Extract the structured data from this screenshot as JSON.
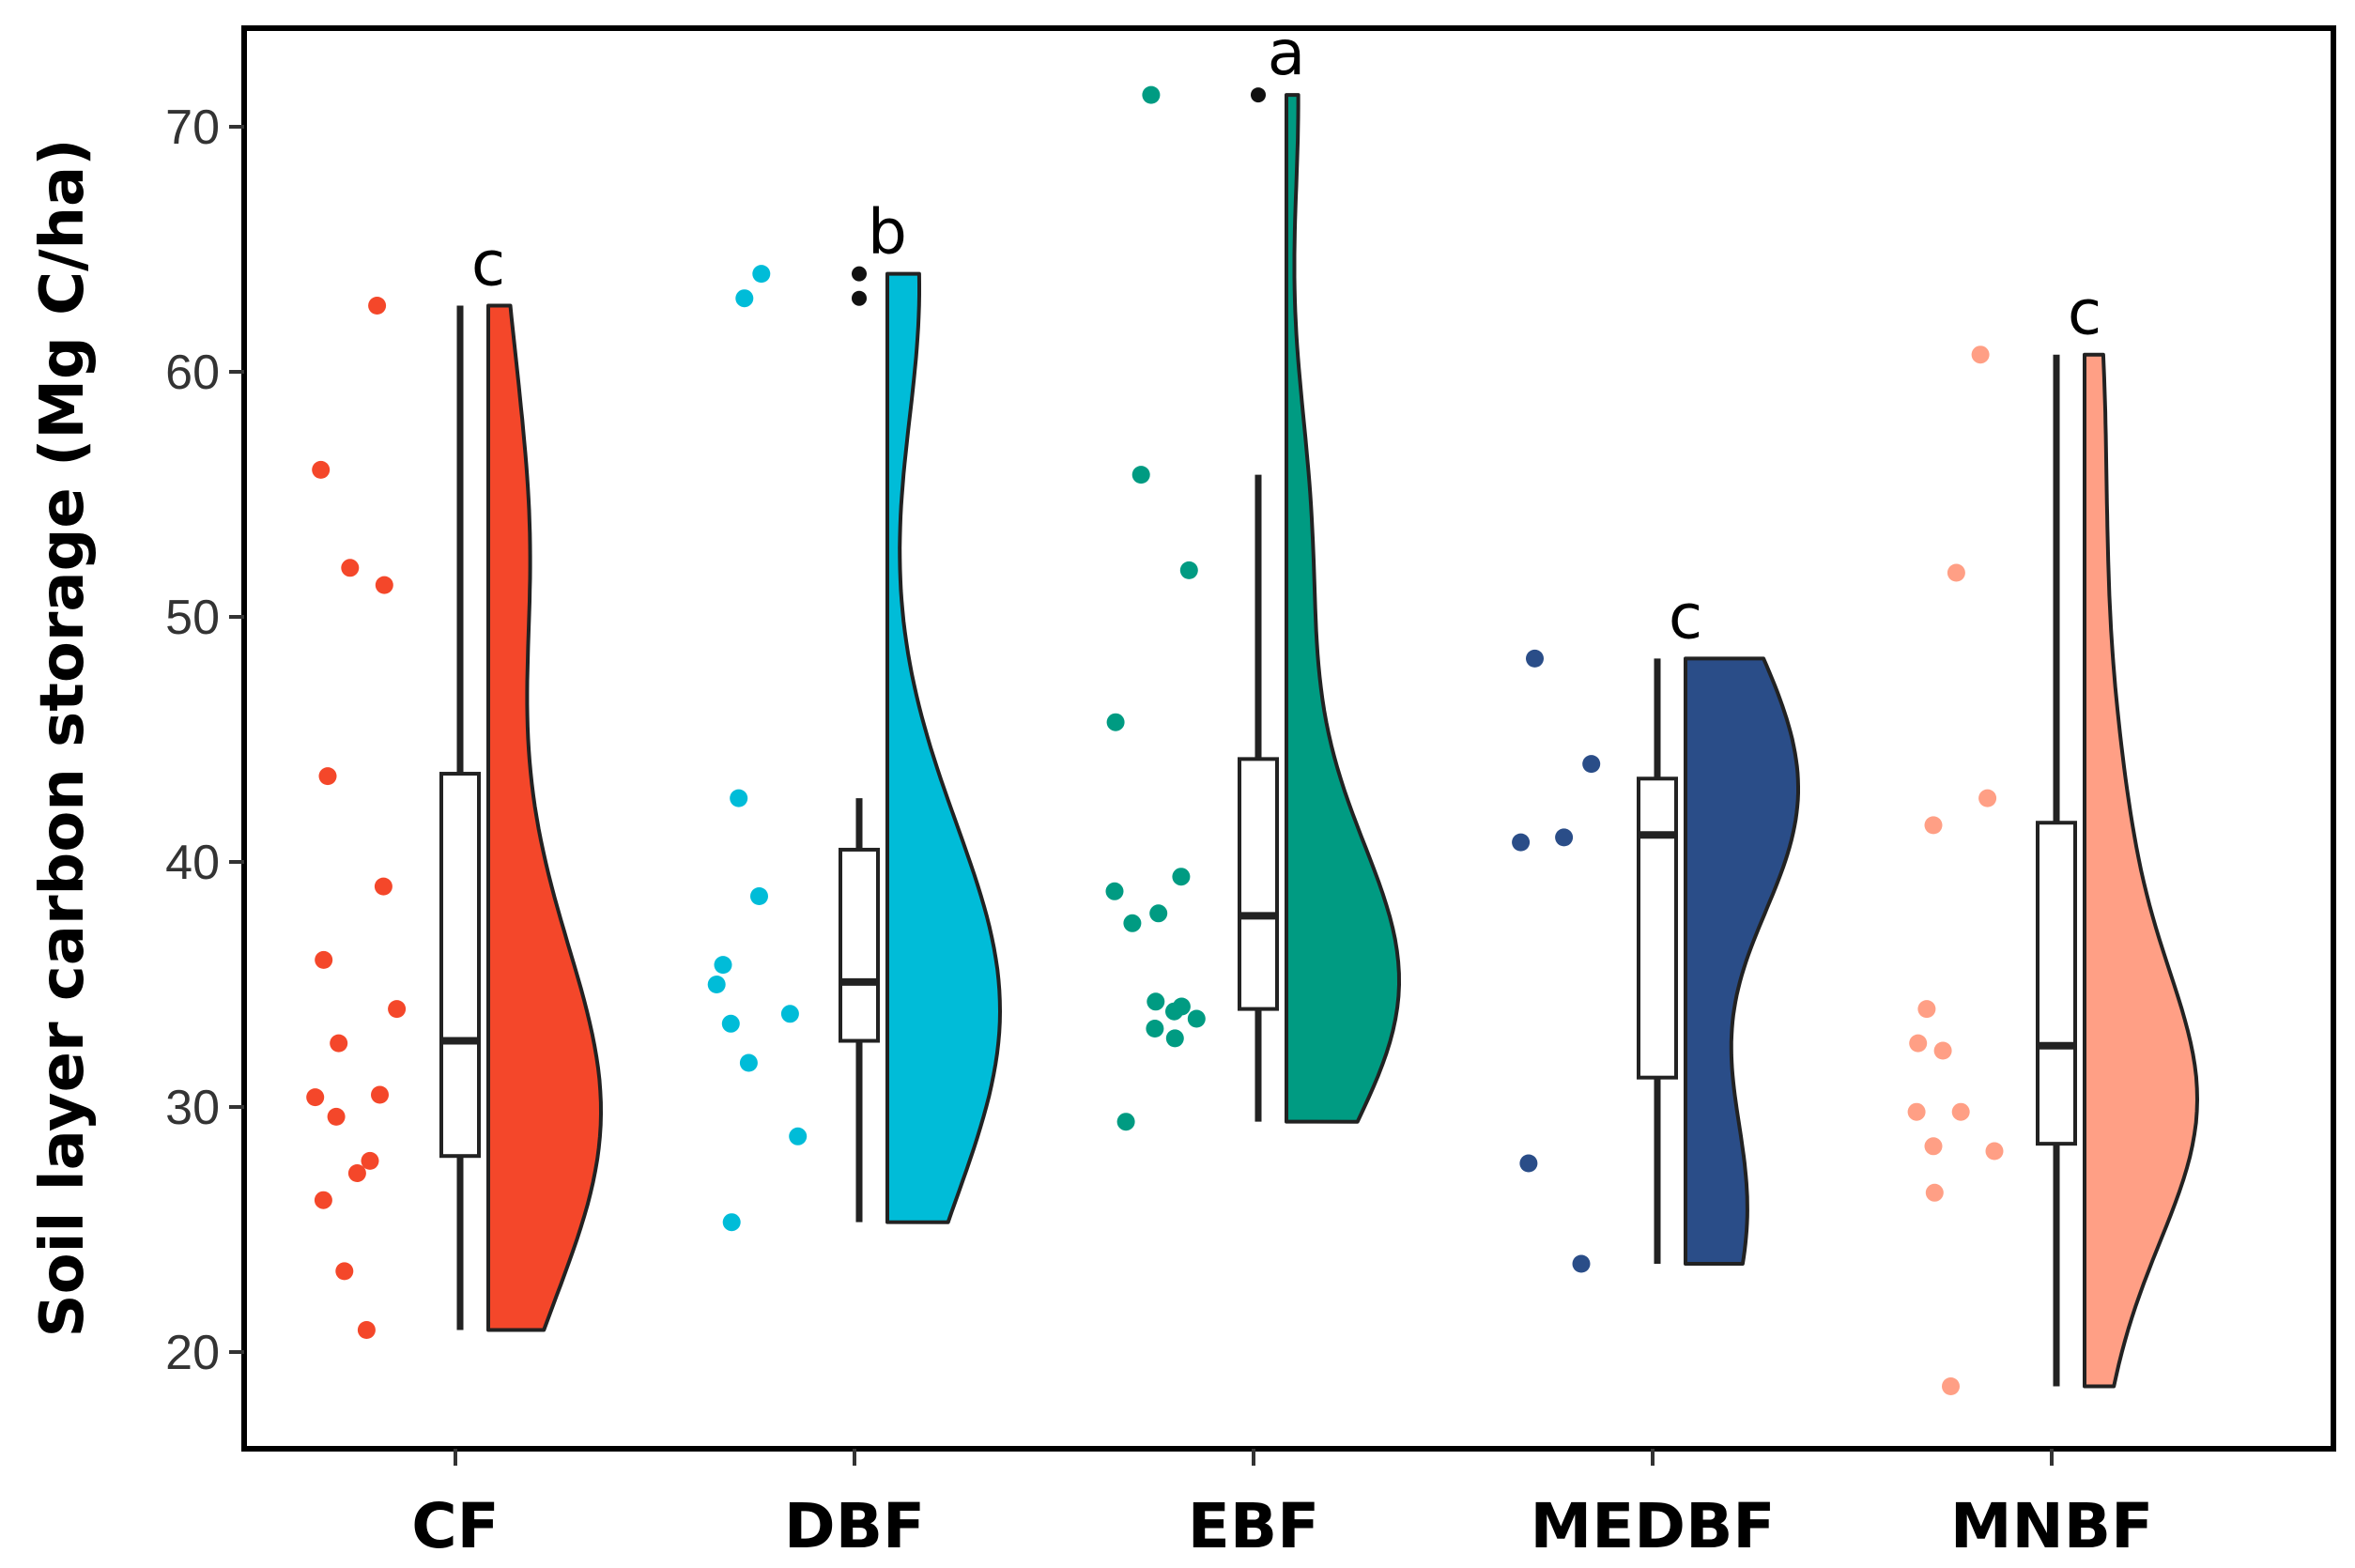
{
  "chart_data": {
    "type": "raincloud",
    "title": "",
    "xlabel": "",
    "ylabel": "Soil layer carbon storage (Mg C/ha)",
    "ylim": [
      16,
      74
    ],
    "yticks": [
      20,
      30,
      40,
      50,
      60,
      70
    ],
    "grid": false,
    "legend": "none",
    "categories": [
      "CF",
      "DBF",
      "EBF",
      "MEDBF",
      "MNBF"
    ],
    "groups": [
      {
        "name": "CF",
        "color": "#F4472A",
        "significance": "c",
        "points": [
          62.7,
          56.0,
          52.0,
          51.3,
          43.5,
          39.0,
          36.0,
          34.0,
          32.6,
          30.5,
          30.4,
          29.6,
          27.8,
          27.3,
          26.2,
          23.3,
          20.9
        ],
        "box": {
          "q1": 28.0,
          "median": 32.7,
          "q3": 43.6
        },
        "outliers": []
      },
      {
        "name": "DBF",
        "color": "#00BCD8",
        "significance": "b",
        "points": [
          64.0,
          63.0,
          42.6,
          38.6,
          35.8,
          35.0,
          33.8,
          33.4,
          31.8,
          28.8,
          25.3
        ],
        "box": {
          "q1": 32.7,
          "median": 35.1,
          "q3": 40.5
        },
        "outliers": [
          64.0,
          63.0
        ]
      },
      {
        "name": "EBF",
        "color": "#009B82",
        "significance": "a",
        "points": [
          71.3,
          55.8,
          51.9,
          45.7,
          39.4,
          38.8,
          37.9,
          37.5,
          34.3,
          34.1,
          33.9,
          33.6,
          33.2,
          32.8,
          29.4
        ],
        "box": {
          "q1": 34.0,
          "median": 37.8,
          "q3": 44.2
        },
        "outliers": [
          71.3
        ]
      },
      {
        "name": "MEDBF",
        "color": "#2A4D88",
        "significance": "c",
        "points": [
          48.3,
          44.0,
          41.0,
          40.8,
          27.7,
          23.6
        ],
        "box": {
          "q1": 31.2,
          "median": 41.1,
          "q3": 43.4
        },
        "outliers": []
      },
      {
        "name": "MNBF",
        "color": "#FF9F85",
        "significance": "c",
        "points": [
          60.7,
          51.8,
          42.6,
          41.5,
          34.0,
          32.6,
          32.3,
          29.8,
          29.8,
          28.4,
          28.2,
          26.5,
          18.6
        ],
        "box": {
          "q1": 28.5,
          "median": 32.5,
          "q3": 41.6
        },
        "outliers": []
      }
    ]
  }
}
